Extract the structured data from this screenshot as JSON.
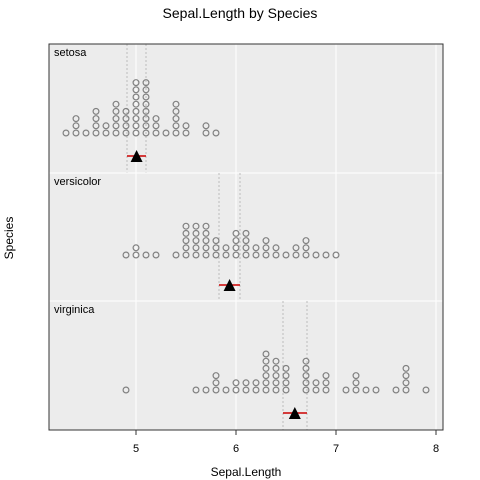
{
  "chart_data": {
    "type": "scatter",
    "subtype": "stacked-dotplot",
    "title": "Sepal.Length by Species",
    "xlabel": "Sepal.Length",
    "ylabel": "Species",
    "xlim": [
      4.13,
      8.07
    ],
    "xticks": [
      "5",
      "6",
      "7",
      "8"
    ],
    "grid": true,
    "background": "#ececec",
    "colors": {
      "dots": "#808080",
      "mean_marker": "#000000",
      "interval": "#cc0000"
    },
    "panels": [
      {
        "label": "setosa",
        "stacks": [
          {
            "x": 4.3,
            "count": 1
          },
          {
            "x": 4.4,
            "count": 3
          },
          {
            "x": 4.5,
            "count": 1
          },
          {
            "x": 4.6,
            "count": 4
          },
          {
            "x": 4.7,
            "count": 2
          },
          {
            "x": 4.8,
            "count": 5
          },
          {
            "x": 4.9,
            "count": 4
          },
          {
            "x": 5.0,
            "count": 8
          },
          {
            "x": 5.1,
            "count": 8
          },
          {
            "x": 5.2,
            "count": 3
          },
          {
            "x": 5.3,
            "count": 1
          },
          {
            "x": 5.4,
            "count": 5
          },
          {
            "x": 5.5,
            "count": 2
          },
          {
            "x": 5.7,
            "count": 2
          },
          {
            "x": 5.8,
            "count": 1
          }
        ],
        "mean": 5.006,
        "interval": [
          4.91,
          5.1
        ],
        "ref_lines": [
          4.91,
          5.1
        ]
      },
      {
        "label": "versicolor",
        "stacks": [
          {
            "x": 4.9,
            "count": 1
          },
          {
            "x": 5.0,
            "count": 2
          },
          {
            "x": 5.1,
            "count": 1
          },
          {
            "x": 5.2,
            "count": 1
          },
          {
            "x": 5.4,
            "count": 1
          },
          {
            "x": 5.5,
            "count": 5
          },
          {
            "x": 5.6,
            "count": 5
          },
          {
            "x": 5.7,
            "count": 5
          },
          {
            "x": 5.8,
            "count": 3
          },
          {
            "x": 5.9,
            "count": 2
          },
          {
            "x": 6.0,
            "count": 4
          },
          {
            "x": 6.1,
            "count": 4
          },
          {
            "x": 6.2,
            "count": 2
          },
          {
            "x": 6.3,
            "count": 3
          },
          {
            "x": 6.4,
            "count": 2
          },
          {
            "x": 6.5,
            "count": 1
          },
          {
            "x": 6.6,
            "count": 2
          },
          {
            "x": 6.7,
            "count": 3
          },
          {
            "x": 6.8,
            "count": 1
          },
          {
            "x": 6.9,
            "count": 1
          },
          {
            "x": 7.0,
            "count": 1
          }
        ],
        "mean": 5.936,
        "interval": [
          5.83,
          6.04
        ],
        "ref_lines": [
          5.83,
          6.04
        ]
      },
      {
        "label": "virginica",
        "stacks": [
          {
            "x": 4.9,
            "count": 1
          },
          {
            "x": 5.6,
            "count": 1
          },
          {
            "x": 5.7,
            "count": 1
          },
          {
            "x": 5.8,
            "count": 3
          },
          {
            "x": 5.9,
            "count": 1
          },
          {
            "x": 6.0,
            "count": 2
          },
          {
            "x": 6.1,
            "count": 2
          },
          {
            "x": 6.2,
            "count": 2
          },
          {
            "x": 6.3,
            "count": 6
          },
          {
            "x": 6.4,
            "count": 5
          },
          {
            "x": 6.5,
            "count": 4
          },
          {
            "x": 6.7,
            "count": 5
          },
          {
            "x": 6.8,
            "count": 2
          },
          {
            "x": 6.9,
            "count": 3
          },
          {
            "x": 7.1,
            "count": 1
          },
          {
            "x": 7.2,
            "count": 3
          },
          {
            "x": 7.3,
            "count": 1
          },
          {
            "x": 7.4,
            "count": 1
          },
          {
            "x": 7.6,
            "count": 1
          },
          {
            "x": 7.7,
            "count": 4
          },
          {
            "x": 7.9,
            "count": 1
          }
        ],
        "mean": 6.588,
        "interval": [
          6.47,
          6.71
        ],
        "ref_lines": [
          6.47,
          6.71
        ]
      }
    ]
  }
}
